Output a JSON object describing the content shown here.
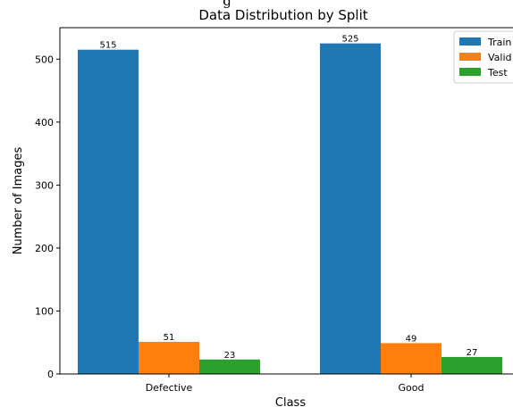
{
  "chart_data": {
    "type": "bar",
    "title": "Data Distribution by Split",
    "xlabel": "Class",
    "ylabel": "Number of Images",
    "categories": [
      "Defective",
      "Good"
    ],
    "series": [
      {
        "name": "Train",
        "values": [
          515,
          525
        ],
        "color": "#1f77b4"
      },
      {
        "name": "Valid",
        "values": [
          51,
          49
        ],
        "color": "#ff7f0e"
      },
      {
        "name": "Test",
        "values": [
          23,
          27
        ],
        "color": "#2ca02c"
      }
    ],
    "ylim": [
      0,
      550
    ],
    "yticks": [
      0,
      100,
      200,
      300,
      400,
      500
    ],
    "grid": false,
    "legend_position": "top-right"
  }
}
